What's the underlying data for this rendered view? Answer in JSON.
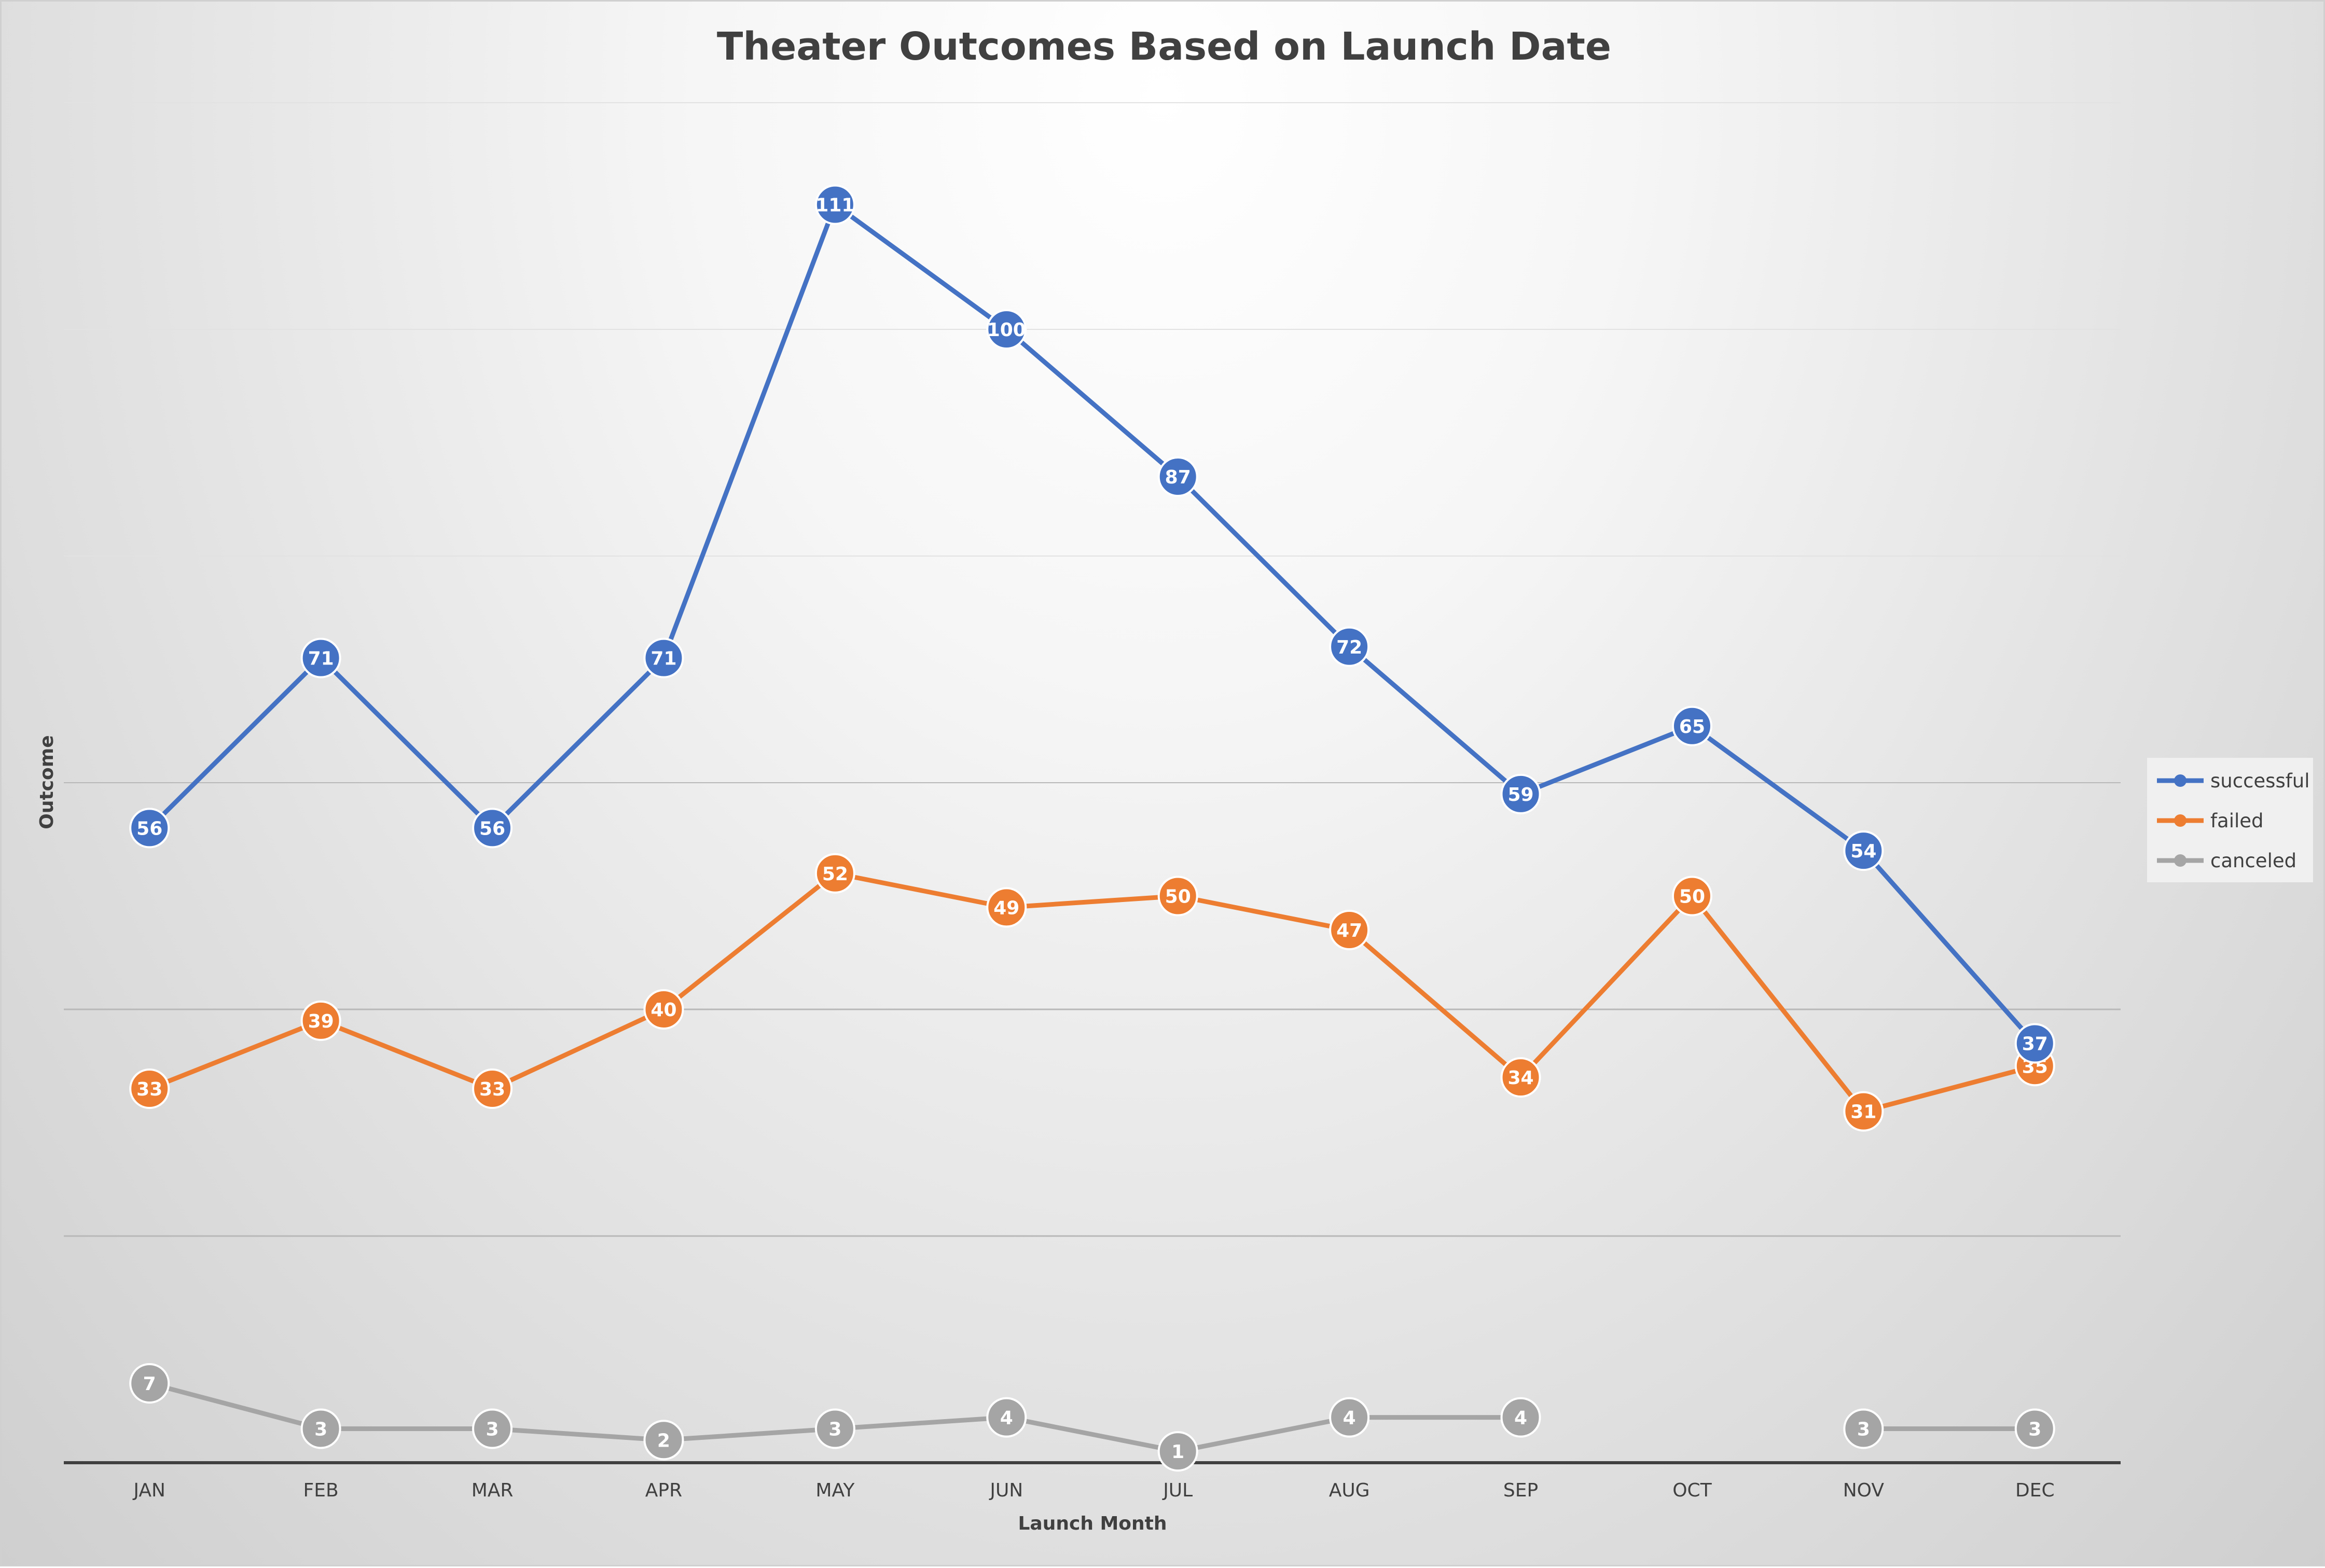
{
  "chart_data": {
    "type": "line",
    "title": "Theater Outcomes Based on Launch Date",
    "xlabel": "Launch Month",
    "ylabel": "Outcome",
    "categories": [
      "JAN",
      "FEB",
      "MAR",
      "APR",
      "MAY",
      "JUN",
      "JUL",
      "AUG",
      "SEP",
      "OCT",
      "NOV",
      "DEC"
    ],
    "ylim": [
      0,
      120
    ],
    "grid": true,
    "legend_position": "right",
    "series": [
      {
        "name": "successful",
        "color": "#4472C4",
        "values": [
          56,
          71,
          56,
          71,
          111,
          100,
          87,
          72,
          59,
          65,
          54,
          37
        ]
      },
      {
        "name": "failed",
        "color": "#ED7D31",
        "values": [
          33,
          39,
          33,
          40,
          52,
          49,
          50,
          47,
          34,
          50,
          31,
          35
        ]
      },
      {
        "name": "canceled",
        "color": "#A5A5A5",
        "values": [
          7,
          3,
          3,
          2,
          3,
          4,
          1,
          4,
          4,
          null,
          3,
          3
        ]
      }
    ]
  }
}
